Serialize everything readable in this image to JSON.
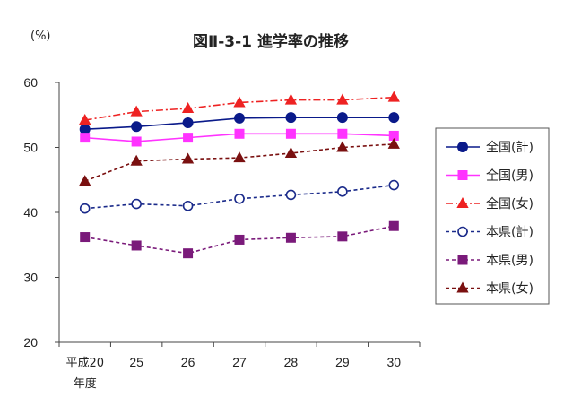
{
  "chart_data": {
    "type": "line",
    "title": "図Ⅱ-3-1 進学率の推移",
    "unit_label": "(%)",
    "categories": [
      "平成20年度",
      "25",
      "26",
      "27",
      "28",
      "29",
      "30"
    ],
    "category_labels": [
      {
        "line1": "平成20",
        "line2": "年度"
      },
      {
        "line1": "25",
        "line2": ""
      },
      {
        "line1": "26",
        "line2": ""
      },
      {
        "line1": "27",
        "line2": ""
      },
      {
        "line1": "28",
        "line2": ""
      },
      {
        "line1": "29",
        "line2": ""
      },
      {
        "line1": "30",
        "line2": ""
      }
    ],
    "ylim": [
      20,
      60
    ],
    "yticks": [
      20,
      30,
      40,
      50,
      60
    ],
    "grid": false,
    "legend_position": "right",
    "series": [
      {
        "name": "全国(計)",
        "values": [
          52.8,
          53.2,
          53.8,
          54.5,
          54.6,
          54.6,
          54.6
        ],
        "color": "#0a1a8a",
        "dash": "solid",
        "marker": "circle-filled"
      },
      {
        "name": "全国(男)",
        "values": [
          51.5,
          50.9,
          51.5,
          52.1,
          52.1,
          52.1,
          51.8
        ],
        "color": "#ff33ff",
        "dash": "solid",
        "marker": "square-filled"
      },
      {
        "name": "全国(女)",
        "values": [
          54.2,
          55.5,
          56.0,
          56.9,
          57.3,
          57.3,
          57.7
        ],
        "color": "#ee2222",
        "dash": "dashdot",
        "marker": "triangle-filled"
      },
      {
        "name": "本県(計)",
        "values": [
          40.6,
          41.3,
          41.0,
          42.1,
          42.7,
          43.2,
          44.2
        ],
        "color": "#1a2a8a",
        "dash": "dashed",
        "marker": "circle-open"
      },
      {
        "name": "本県(男)",
        "values": [
          36.2,
          34.9,
          33.7,
          35.8,
          36.1,
          36.3,
          37.9
        ],
        "color": "#7a1a7a",
        "dash": "dashed",
        "marker": "square-filled"
      },
      {
        "name": "本県(女)",
        "values": [
          44.8,
          47.9,
          48.2,
          48.4,
          49.1,
          50.0,
          50.5
        ],
        "color": "#7a1010",
        "dash": "dashed",
        "marker": "triangle-filled"
      }
    ]
  }
}
